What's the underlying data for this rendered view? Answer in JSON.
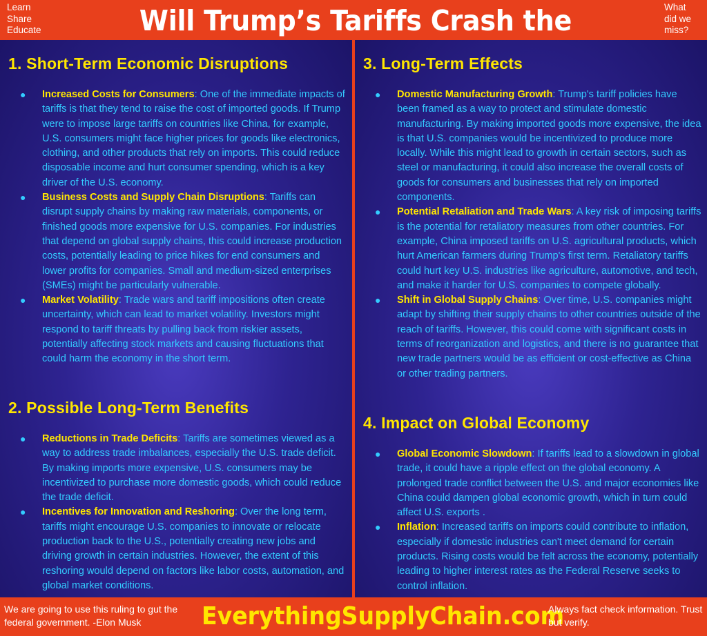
{
  "header": {
    "tagline": [
      "Learn",
      "Share",
      "Educate"
    ],
    "title": "Will Trump’s Tariffs Crash the Economy?",
    "missed": [
      "What",
      "did we",
      "miss?"
    ]
  },
  "sections": [
    {
      "heading": "1. Short-Term Economic Disruptions",
      "items": [
        {
          "term": "Increased Costs for Consumers",
          "text": ": One of the immediate impacts of tariffs is that they tend to raise the cost of imported goods. If Trump were to impose large tariffs on countries like China, for example, U.S. consumers might face higher prices for goods like electronics, clothing, and other products that rely on imports. This could reduce disposable income and hurt consumer spending, which is a key driver of the U.S. economy."
        },
        {
          "term": "Business Costs and Supply Chain Disruptions",
          "text": ": Tariffs can disrupt supply chains by making raw materials, components, or finished goods more expensive for U.S. companies. For industries that depend on global supply chains, this could increase production costs, potentially leading to price hikes for end consumers and lower profits for companies. Small and medium-sized enterprises (SMEs) might be particularly vulnerable."
        },
        {
          "term": "Market Volatility",
          "text": ": Trade wars and tariff impositions often create uncertainty, which can lead to market volatility. Investors might respond to tariff threats by pulling back from riskier assets, potentially affecting stock markets and causing fluctuations that could harm the economy in the short term."
        }
      ]
    },
    {
      "heading": "2. Possible Long-Term Benefits",
      "items": [
        {
          "term": "Reductions in Trade Deficits",
          "text": ": Tariffs are sometimes viewed as a way to address trade imbalances, especially the U.S. trade deficit. By making imports more expensive, U.S. consumers may be incentivized to purchase more domestic goods, which could reduce the trade deficit."
        },
        {
          "term": "Incentives for Innovation and Reshoring",
          "text": ": Over the long term, tariffs might encourage U.S. companies to innovate or relocate production back to the U.S., potentially creating new jobs and driving growth in certain industries. However, the extent of this reshoring would depend on factors like labor costs, automation, and global market conditions."
        }
      ]
    },
    {
      "heading": "3. Long-Term Effects",
      "items": [
        {
          "term": "Domestic Manufacturing Growth",
          "text": ": Trump's tariff policies have been framed as a way to protect and stimulate domestic manufacturing. By making imported goods more expensive, the idea is that U.S. companies would be incentivized to produce more locally. While this might lead to growth in certain sectors, such as steel or manufacturing, it could also increase the overall costs of goods for consumers and businesses that rely on imported components."
        },
        {
          "term": "Potential Retaliation and Trade Wars",
          "text": ": A key risk of imposing tariffs is the potential for retaliatory measures from other countries. For example, China imposed tariffs on U.S. agricultural products, which hurt American farmers during Trump's first term. Retaliatory tariffs could hurt key U.S. industries like agriculture, automotive, and tech, and make it harder for U.S. companies to compete globally."
        },
        {
          "term": "Shift in Global Supply Chains",
          "text": ": Over time, U.S. companies might adapt by shifting their supply chains to other countries outside of the reach of tariffs. However, this could come with significant costs in terms of reorganization and logistics, and there is no guarantee that new trade partners would be as efficient or cost-effective as China or other trading partners."
        }
      ]
    },
    {
      "heading": "4. Impact on Global Economy",
      "items": [
        {
          "term": "Global Economic Slowdown",
          "text": ": If tariffs lead to a slowdown in global trade, it could have a ripple effect on the global economy. A prolonged trade conflict between the U.S. and major economies like China could dampen global economic growth, which in turn could affect U.S. exports ."
        },
        {
          "term": "Inflation",
          "text": ": Increased tariffs on imports could contribute to inflation, especially if domestic industries can't meet demand for certain products. Rising costs would be felt across the economy, potentially leading to higher interest rates as the Federal Reserve seeks to control inflation."
        }
      ]
    }
  ],
  "footer": {
    "quote": "We are going to use this ruling to gut the federal government. -Elon Musk",
    "brand": "EverythingSupplyChain.com",
    "factcheck": "Always fact check information. Trust but verify."
  }
}
